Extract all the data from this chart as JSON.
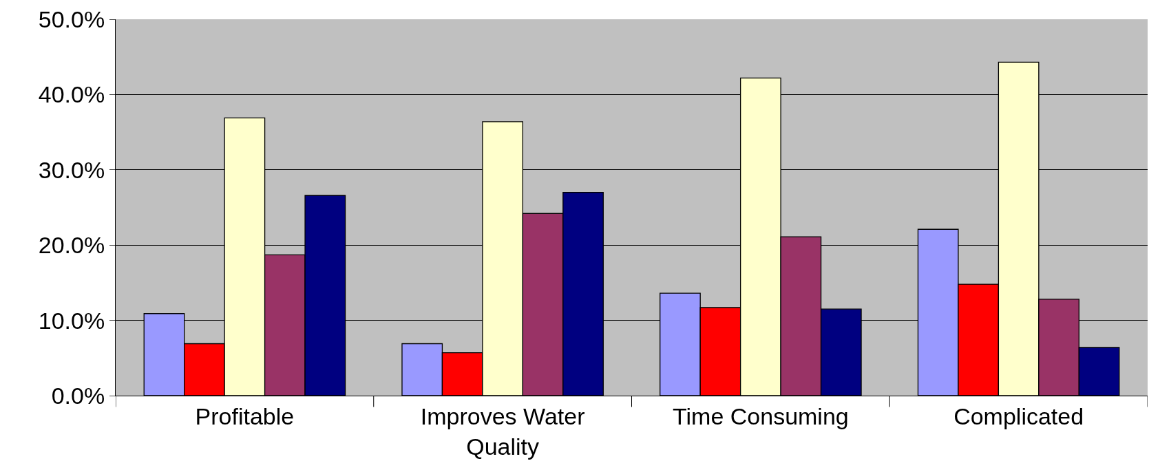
{
  "chart_data": {
    "type": "bar",
    "categories": [
      "Profitable",
      "Improves Water Quality",
      "Time Consuming",
      "Complicated"
    ],
    "series": [
      {
        "color": "#9999ff",
        "values": [
          10.9,
          6.9,
          13.6,
          22.1
        ]
      },
      {
        "color": "#ff0000",
        "values": [
          6.9,
          5.7,
          11.7,
          14.8
        ]
      },
      {
        "color": "#ffffcc",
        "values": [
          36.9,
          36.4,
          42.2,
          44.3
        ]
      },
      {
        "color": "#993366",
        "values": [
          18.7,
          24.2,
          21.1,
          12.8
        ]
      },
      {
        "color": "#000080",
        "values": [
          26.6,
          27.0,
          11.5,
          6.4
        ]
      }
    ],
    "ylim": [
      0,
      50
    ],
    "yticks": [
      {
        "value": 0,
        "label": "0.0%"
      },
      {
        "value": 10,
        "label": "10.0%"
      },
      {
        "value": 20,
        "label": "20.0%"
      },
      {
        "value": 30,
        "label": "30.0%"
      },
      {
        "value": 40,
        "label": "40.0%"
      },
      {
        "value": 50,
        "label": "50.0%"
      }
    ],
    "grid": "y",
    "legend": false
  }
}
